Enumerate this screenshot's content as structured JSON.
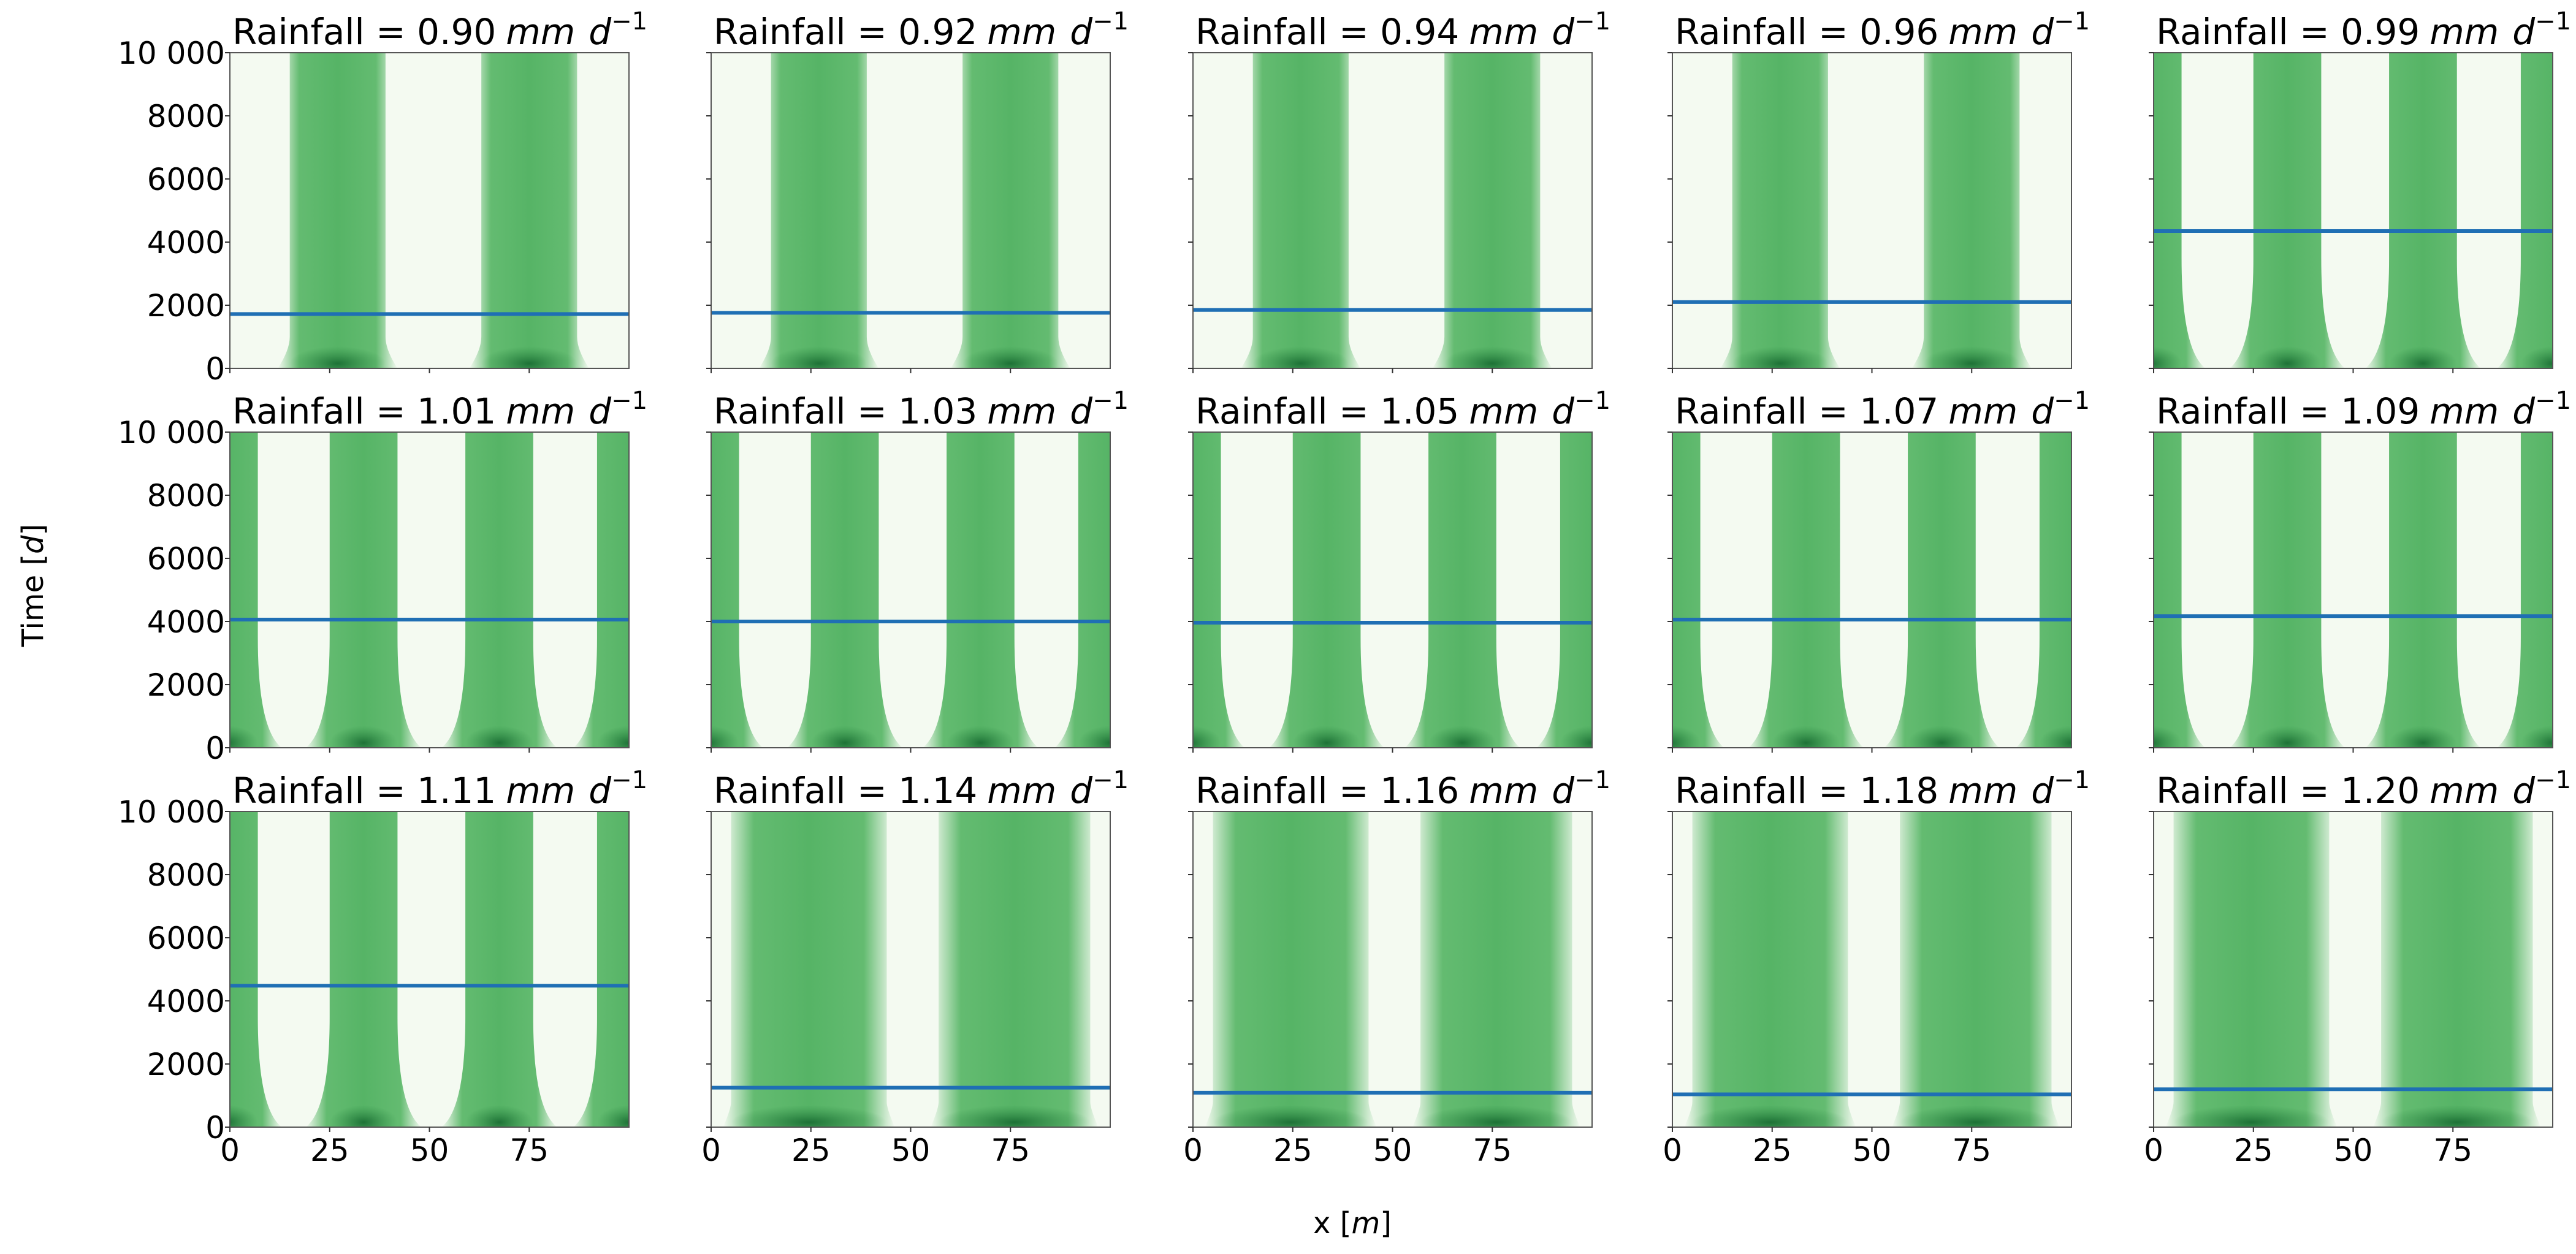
{
  "chart_data": {
    "type": "heatmap",
    "title_prefix": "Rainfall = ",
    "units_label": "mm",
    "units_exp_base": "d",
    "units_exp": "−1",
    "xlabel": "x [",
    "xlabel_unit": "m",
    "xlabel_close": "]",
    "ylabel": "Time [",
    "ylabel_unit": "d",
    "ylabel_close": "]",
    "xlim": [
      0,
      100
    ],
    "ylim": [
      0,
      10000
    ],
    "xticks": [
      "0",
      "25",
      "50",
      "75"
    ],
    "xtick_values": [
      0,
      25,
      50,
      75
    ],
    "yticks": [
      "0",
      "2000",
      "4000",
      "6000",
      "8000",
      "10 000"
    ],
    "ytick_values": [
      0,
      2000,
      4000,
      6000,
      8000,
      10000
    ],
    "colors": {
      "background": "#f4faf1",
      "vegetation": "#5cb86a",
      "dense": "#1f7a3a",
      "line": "#1f6fb4"
    },
    "panels": [
      {
        "rainfall": "0.90",
        "line_time": 1720,
        "pattern": "low"
      },
      {
        "rainfall": "0.92",
        "line_time": 1760,
        "pattern": "low"
      },
      {
        "rainfall": "0.94",
        "line_time": 1850,
        "pattern": "low"
      },
      {
        "rainfall": "0.96",
        "line_time": 2100,
        "pattern": "low"
      },
      {
        "rainfall": "0.99",
        "line_time": 4350,
        "pattern": "mid"
      },
      {
        "rainfall": "1.01",
        "line_time": 4060,
        "pattern": "mid"
      },
      {
        "rainfall": "1.03",
        "line_time": 4000,
        "pattern": "mid"
      },
      {
        "rainfall": "1.05",
        "line_time": 3960,
        "pattern": "mid"
      },
      {
        "rainfall": "1.07",
        "line_time": 4060,
        "pattern": "mid"
      },
      {
        "rainfall": "1.09",
        "line_time": 4170,
        "pattern": "mid"
      },
      {
        "rainfall": "1.11",
        "line_time": 4480,
        "pattern": "mid"
      },
      {
        "rainfall": "1.14",
        "line_time": 1250,
        "pattern": "high"
      },
      {
        "rainfall": "1.16",
        "line_time": 1090,
        "pattern": "high"
      },
      {
        "rainfall": "1.18",
        "line_time": 1040,
        "pattern": "high"
      },
      {
        "rainfall": "1.20",
        "line_time": 1200,
        "pattern": "high"
      }
    ],
    "patterns": {
      "low": {
        "bands": [
          [
            15,
            39
          ],
          [
            63,
            87
          ]
        ],
        "flare": 3,
        "flare_time": 1000
      },
      "mid": {
        "bands": [
          [
            -8,
            7
          ],
          [
            25,
            42
          ],
          [
            59,
            76
          ],
          [
            92,
            108
          ]
        ],
        "flare": 6,
        "flare_time": 3500
      },
      "high": {
        "bands": [
          [
            5,
            44
          ],
          [
            57,
            95
          ]
        ],
        "flare": 2,
        "flare_time": 800
      }
    }
  }
}
